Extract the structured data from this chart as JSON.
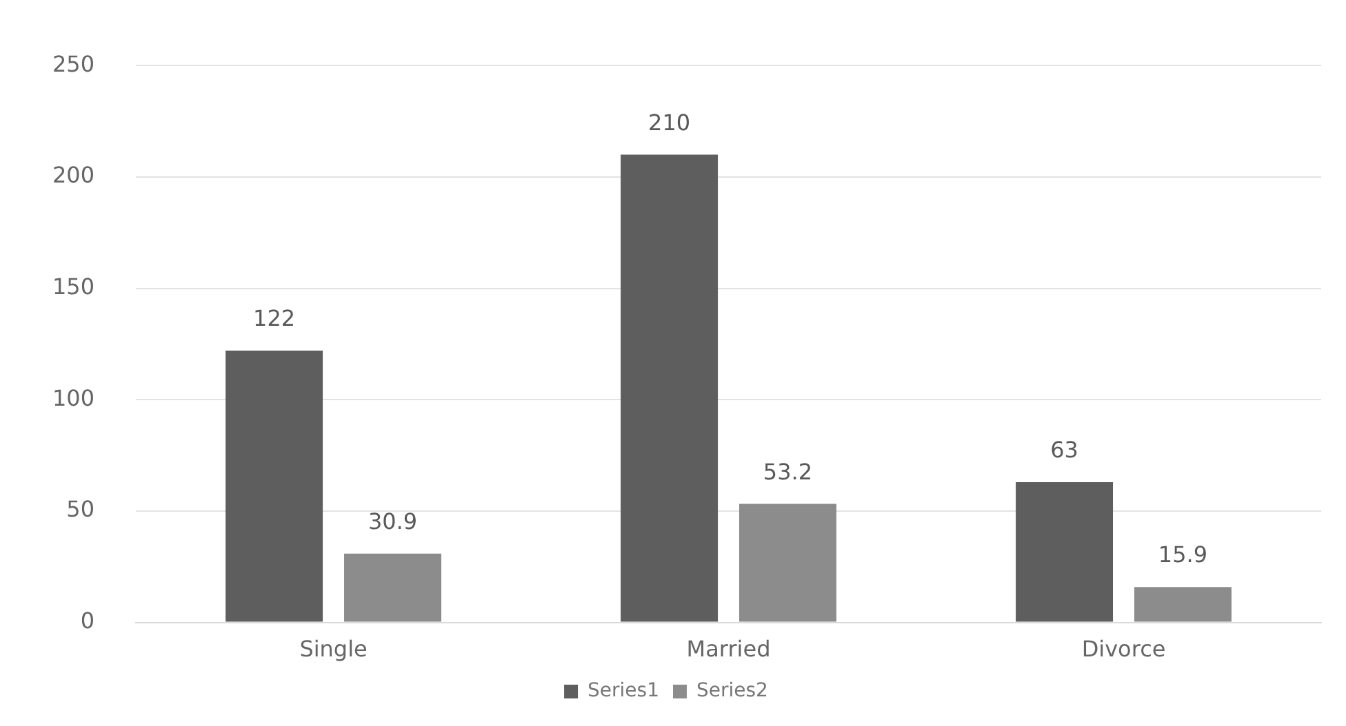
{
  "chart_data": {
    "type": "bar",
    "categories": [
      "Single",
      "Married",
      "Divorce"
    ],
    "series": [
      {
        "name": "Series1",
        "color": "#5e5e5e",
        "values": [
          122,
          210,
          63
        ]
      },
      {
        "name": "Series2",
        "color": "#8c8c8c",
        "values": [
          30.9,
          53.2,
          15.9
        ]
      }
    ],
    "ylim": [
      0,
      250
    ],
    "yticks": [
      0,
      50,
      100,
      150,
      200,
      250
    ],
    "grid": "y",
    "legend": "bottom",
    "data_labels": true
  }
}
